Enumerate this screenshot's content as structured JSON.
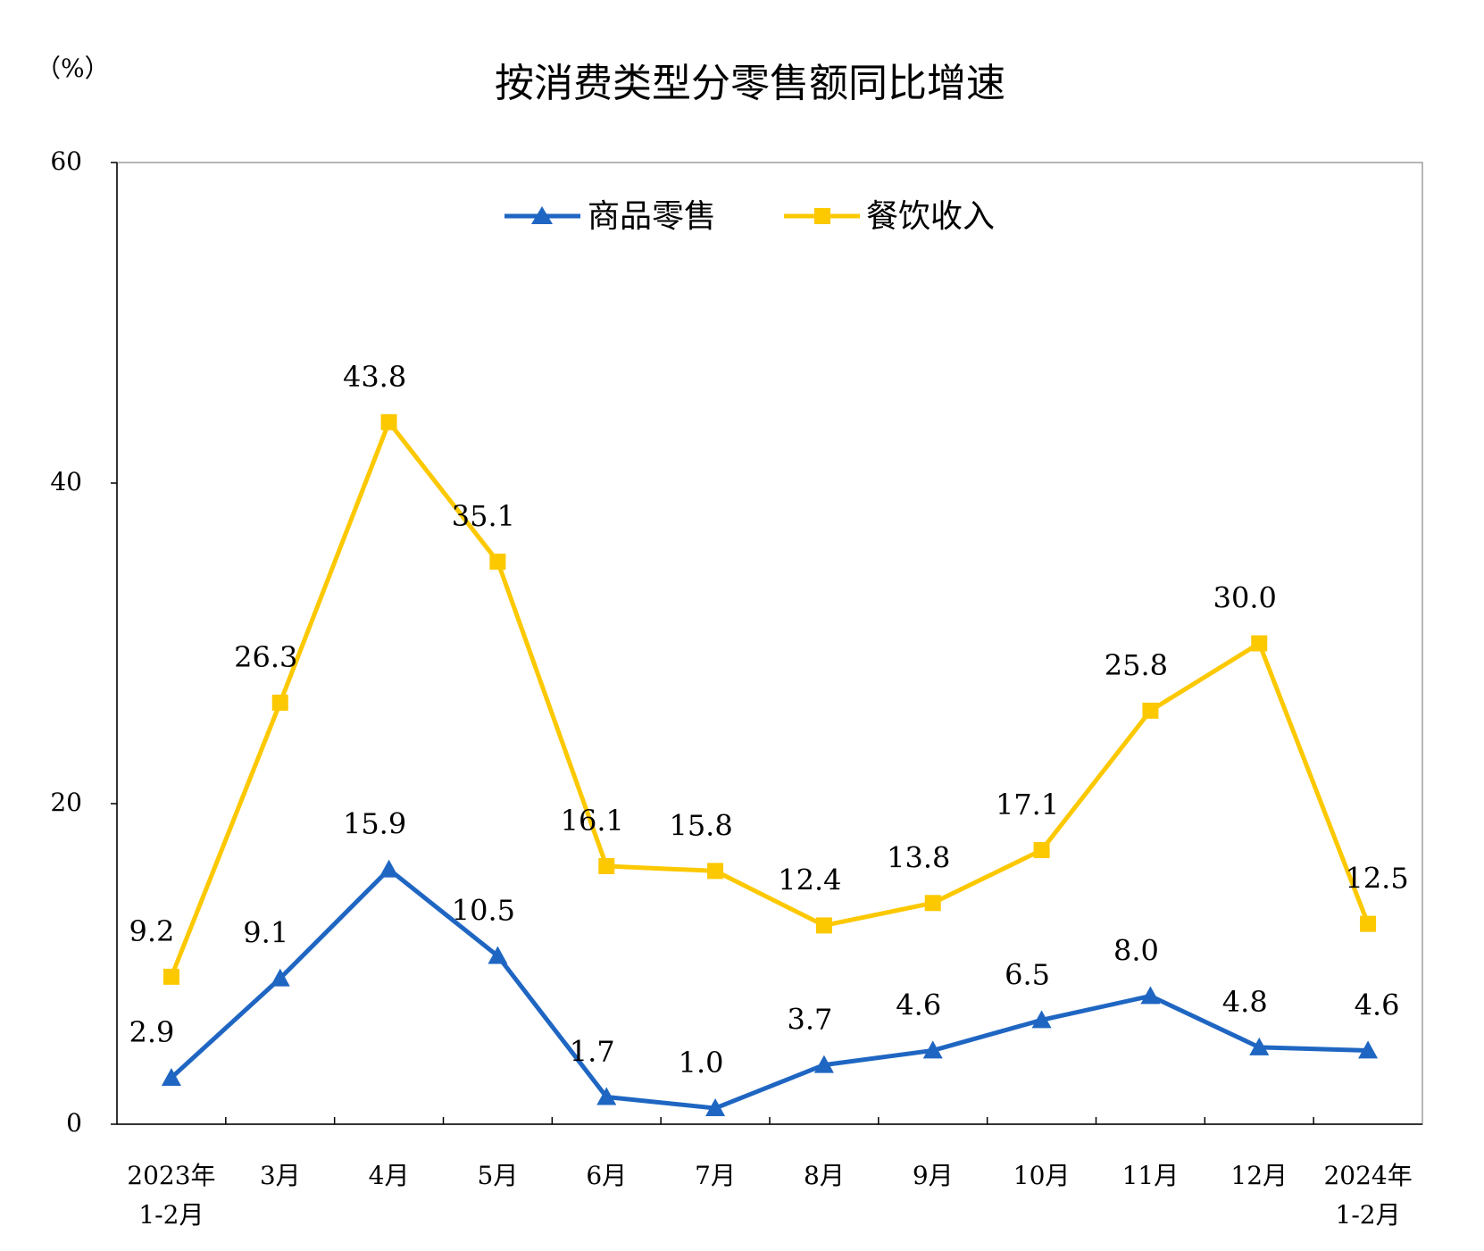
{
  "chart_data": {
    "type": "line",
    "title": "按消费类型分零售额同比增速",
    "unit": "（%）",
    "categories": [
      [
        "2023年",
        "1-2月"
      ],
      [
        "3月"
      ],
      [
        "4月"
      ],
      [
        "5月"
      ],
      [
        "6月"
      ],
      [
        "7月"
      ],
      [
        "8月"
      ],
      [
        "9月"
      ],
      [
        "10月"
      ],
      [
        "11月"
      ],
      [
        "12月"
      ],
      [
        "2024年",
        "1-2月"
      ]
    ],
    "ylim": [
      0,
      60
    ],
    "yticks": [
      "0",
      "20",
      "40",
      "60"
    ],
    "grid": false,
    "legend_position": "top-center",
    "series": [
      {
        "name": "商品零售",
        "color": "#1f66c2",
        "marker": "triangle",
        "values": [
          2.9,
          9.1,
          15.9,
          10.5,
          1.7,
          1.0,
          3.7,
          4.6,
          6.5,
          8.0,
          4.8,
          4.6
        ],
        "labels": [
          "2.9",
          "9.1",
          "15.9",
          "10.5",
          "1.7",
          "1.0",
          "3.7",
          "4.6",
          "6.5",
          "8.0",
          "4.8",
          "4.6"
        ]
      },
      {
        "name": "餐饮收入",
        "color": "#fcc800",
        "marker": "square",
        "values": [
          9.2,
          26.3,
          43.8,
          35.1,
          16.1,
          15.8,
          12.4,
          13.8,
          17.1,
          25.8,
          30.0,
          12.5
        ],
        "labels": [
          "9.2",
          "26.3",
          "43.8",
          "35.1",
          "16.1",
          "15.8",
          "12.4",
          "13.8",
          "17.1",
          "25.8",
          "30.0",
          "12.5"
        ]
      }
    ]
  }
}
